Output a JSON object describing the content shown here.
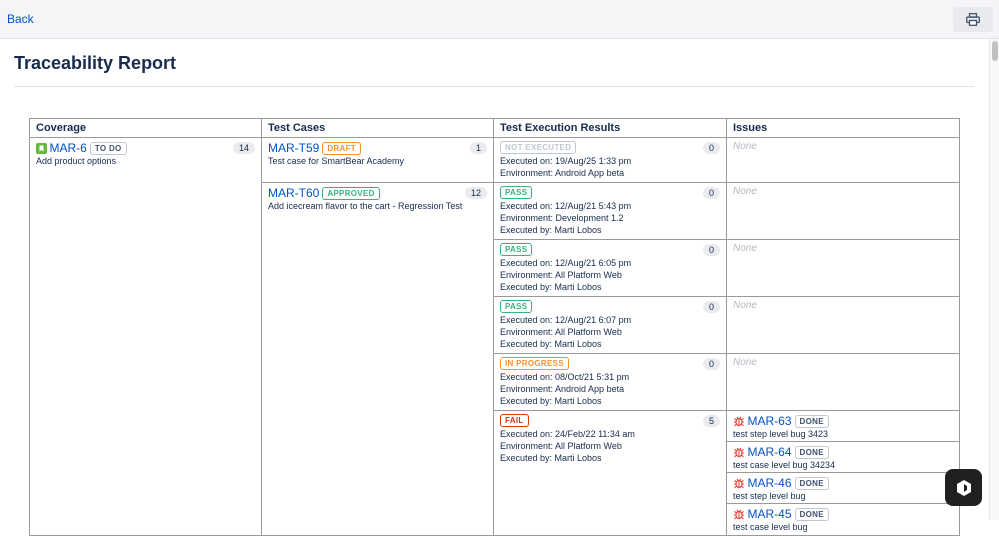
{
  "topbar": {
    "back_label": "Back",
    "print_icon": "printer-icon"
  },
  "page_title": "Traceability Report",
  "table": {
    "headers": [
      "Coverage",
      "Test Cases",
      "Test Execution Results",
      "Issues"
    ],
    "coverage": {
      "key": "MAR-6",
      "status": "TO DO",
      "summary": "Add product options",
      "count": "14",
      "icon": "story-icon"
    },
    "test_cases": [
      {
        "key": "MAR-T59",
        "status": "DRAFT",
        "status_color": "#f79232",
        "summary": "Test case for SmartBear Academy",
        "count": "1"
      },
      {
        "key": "MAR-T60",
        "status": "APPROVED",
        "status_color": "#36b37e",
        "summary": "Add icecream flavor to the cart - Regression Test",
        "count": "12"
      }
    ],
    "executions": [
      {
        "status": "NOT EXECUTED",
        "status_color": "#c1c7d0",
        "executed_on": "Executed on: 19/Aug/25 1:33 pm",
        "environment": "Environment: Android App beta",
        "executed_by": "",
        "count": "0"
      },
      {
        "status": "PASS",
        "status_color": "#36b37e",
        "executed_on": "Executed on: 12/Aug/21 5:43 pm",
        "environment": "Environment: Development 1.2",
        "executed_by": "Executed by: Marti Lobos",
        "count": "0"
      },
      {
        "status": "PASS",
        "status_color": "#36b37e",
        "executed_on": "Executed on: 12/Aug/21 6:05 pm",
        "environment": "Environment: All Platform Web",
        "executed_by": "Executed by: Marti Lobos",
        "count": "0"
      },
      {
        "status": "PASS",
        "status_color": "#36b37e",
        "executed_on": "Executed on: 12/Aug/21 6:07 pm",
        "environment": "Environment: All Platform Web",
        "executed_by": "Executed by: Marti Lobos",
        "count": "0"
      },
      {
        "status": "IN PROGRESS",
        "status_color": "#f79232",
        "executed_on": "Executed on: 08/Oct/21 5:31 pm",
        "environment": "Environment: Android App beta",
        "executed_by": "Executed by: Marti Lobos",
        "count": "0"
      },
      {
        "status": "FAIL",
        "status_color": "#de350b",
        "executed_on": "Executed on: 24/Feb/22 11:34 am",
        "environment": "Environment: All Platform Web",
        "executed_by": "Executed by: Marti Lobos",
        "count": "5"
      }
    ],
    "none_label": "None",
    "issues": [
      {
        "key": "MAR-63",
        "status": "DONE",
        "summary": "test step level bug 3423"
      },
      {
        "key": "MAR-64",
        "status": "DONE",
        "summary": "test case level bug 34234"
      },
      {
        "key": "MAR-46",
        "status": "DONE",
        "summary": "test step level bug"
      },
      {
        "key": "MAR-45",
        "status": "DONE",
        "summary": "test case level bug"
      }
    ]
  }
}
